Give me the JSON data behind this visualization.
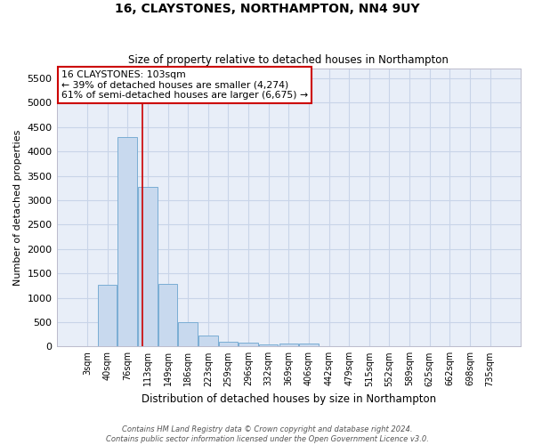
{
  "title": "16, CLAYSTONES, NORTHAMPTON, NN4 9UY",
  "subtitle": "Size of property relative to detached houses in Northampton",
  "xlabel": "Distribution of detached houses by size in Northampton",
  "ylabel": "Number of detached properties",
  "categories": [
    "3sqm",
    "40sqm",
    "76sqm",
    "113sqm",
    "149sqm",
    "186sqm",
    "223sqm",
    "259sqm",
    "296sqm",
    "332sqm",
    "369sqm",
    "406sqm",
    "442sqm",
    "479sqm",
    "515sqm",
    "552sqm",
    "589sqm",
    "625sqm",
    "662sqm",
    "698sqm",
    "735sqm"
  ],
  "values": [
    0,
    1270,
    4300,
    3270,
    1280,
    490,
    220,
    90,
    70,
    50,
    55,
    55,
    0,
    0,
    0,
    0,
    0,
    0,
    0,
    0,
    0
  ],
  "bar_color": "#c8d9ee",
  "bar_edge_color": "#7aadd4",
  "bar_edge_width": 0.7,
  "red_line_x": 2.72,
  "annotation_title": "16 CLAYSTONES: 103sqm",
  "annotation_line1": "← 39% of detached houses are smaller (4,274)",
  "annotation_line2": "61% of semi-detached houses are larger (6,675) →",
  "annotation_box_color": "#ffffff",
  "annotation_box_edge": "#cc0000",
  "red_line_color": "#cc0000",
  "ylim": [
    0,
    5700
  ],
  "yticks": [
    0,
    500,
    1000,
    1500,
    2000,
    2500,
    3000,
    3500,
    4000,
    4500,
    5000,
    5500
  ],
  "grid_color": "#c8d4e8",
  "background_color": "#e8eef8",
  "footer1": "Contains HM Land Registry data © Crown copyright and database right 2024.",
  "footer2": "Contains public sector information licensed under the Open Government Licence v3.0."
}
